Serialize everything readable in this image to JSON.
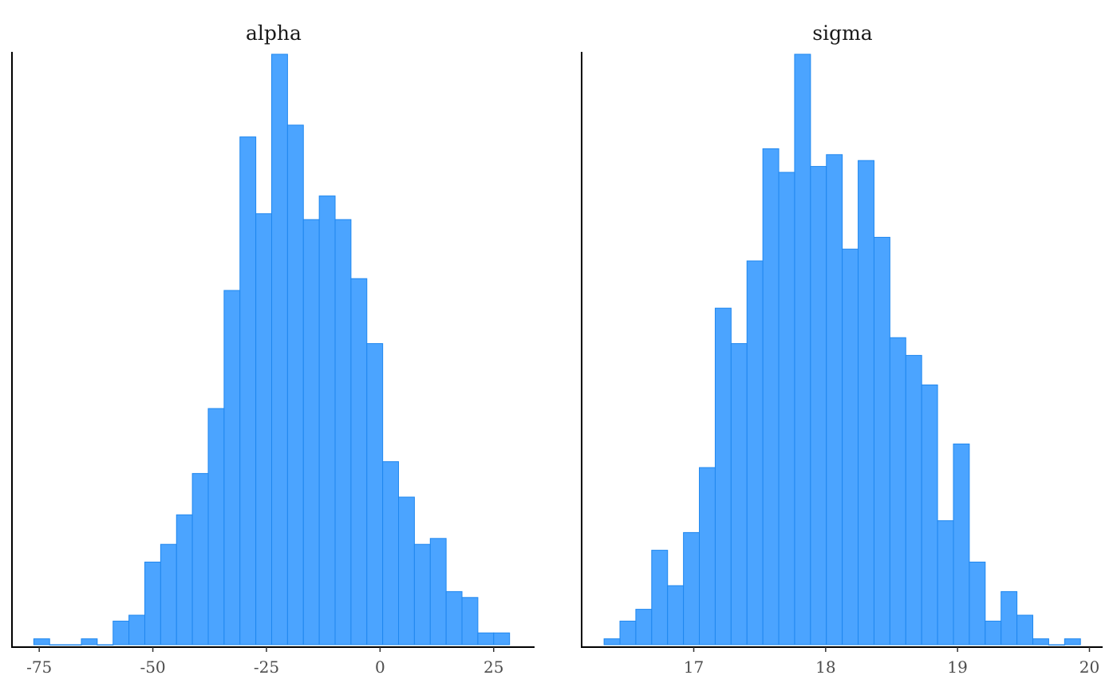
{
  "chart_data": [
    {
      "type": "bar",
      "title": "alpha",
      "xlabel": "",
      "ylabel": "",
      "xlim": [
        -81,
        34
      ],
      "x_ticks": [
        -75,
        -50,
        -25,
        0,
        25
      ],
      "x_tick_labels": [
        "-75",
        "-50",
        "-25",
        "0",
        "25"
      ],
      "bin_start": -76.2,
      "bin_width": 3.49,
      "counts": [
        1,
        0,
        0,
        1,
        0,
        4,
        5,
        14,
        17,
        22,
        29,
        40,
        60,
        86,
        73,
        100,
        88,
        72,
        76,
        72,
        62,
        51,
        31,
        25,
        17,
        18,
        9,
        8,
        2,
        2
      ],
      "grid": false,
      "fill_color": "#4ba4ff",
      "edge_color": "#1f87ef"
    },
    {
      "type": "bar",
      "title": "sigma",
      "xlabel": "",
      "ylabel": "",
      "xlim": [
        16.15,
        20.1
      ],
      "x_ticks": [
        17,
        18,
        19,
        20
      ],
      "x_tick_labels": [
        "17",
        "18",
        "19",
        "20"
      ],
      "bin_start": 16.32,
      "bin_width": 0.1204,
      "counts": [
        1,
        4,
        6,
        16,
        10,
        19,
        30,
        57,
        51,
        65,
        84,
        80,
        100,
        81,
        83,
        67,
        82,
        69,
        52,
        49,
        44,
        21,
        34,
        14,
        4,
        9,
        5,
        1,
        0,
        1
      ],
      "grid": false,
      "fill_color": "#4ba4ff",
      "edge_color": "#1f87ef"
    }
  ]
}
